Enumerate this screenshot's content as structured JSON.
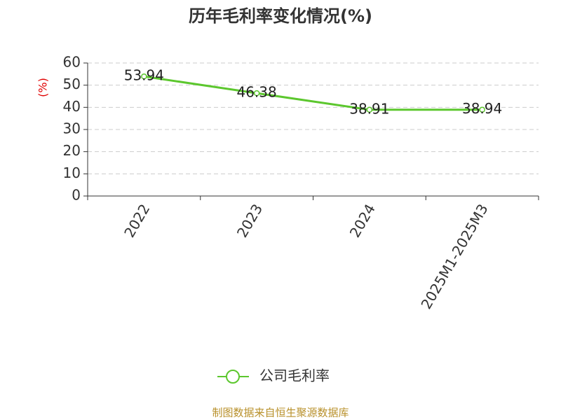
{
  "chart_data": {
    "type": "line",
    "title": "历年毛利率变化情况(%)",
    "ylabel": "(%)",
    "categories": [
      "2022",
      "2023",
      "2024",
      "2025M1-2025M3"
    ],
    "series": [
      {
        "name": "公司毛利率",
        "color": "#5cc72e",
        "values": [
          53.94,
          46.38,
          38.91,
          38.94
        ]
      }
    ],
    "ylim": [
      0,
      60
    ],
    "yticks": [
      0,
      10,
      20,
      30,
      40,
      50,
      60
    ],
    "grid": true,
    "legend": "bottom",
    "source": "制图数据来自恒生聚源数据库"
  }
}
